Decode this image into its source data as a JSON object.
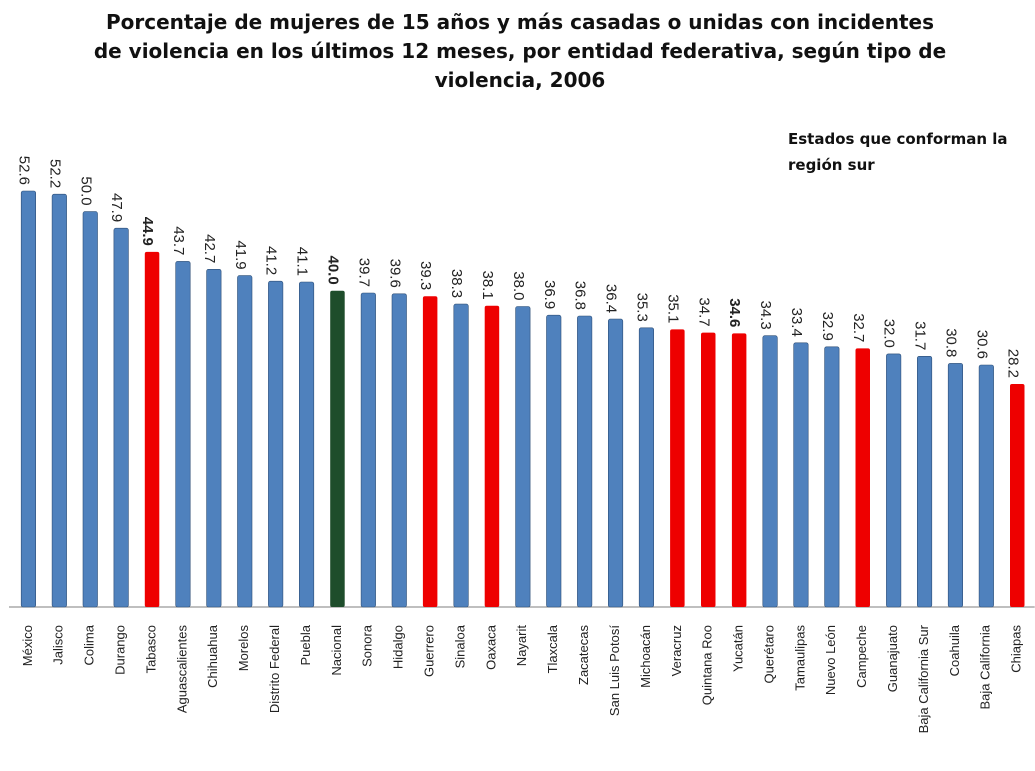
{
  "chart_data": {
    "type": "bar",
    "title": "Porcentaje de mujeres de 15 años y más casadas o unidas con incidentes de violencia en los últimos 12 meses, por entidad federativa, según tipo de violencia, 2006",
    "annotation": "Estados que conforman la región sur",
    "xlabel": "",
    "ylabel": "",
    "ylim": [
      0,
      52.6
    ],
    "grid": false,
    "legend": "none",
    "colors": {
      "default": "#4f81bd",
      "region_sur": "#ee0000",
      "nacional": "#1e4d2b",
      "bar_edge": "#2c4d75"
    },
    "categories": [
      "México",
      "Jalisco",
      "Colima",
      "Durango",
      "Tabasco",
      "Aguascalientes",
      "Chihuahua",
      "Morelos",
      "Distrito Federal",
      "Puebla",
      "Nacional",
      "Sonora",
      "Hidalgo",
      "Guerrero",
      "Sinaloa",
      "Oaxaca",
      "Nayarit",
      "Tlaxcala",
      "Zacatecas",
      "San Luis Potosí",
      "Michoacán",
      "Veracruz",
      "Quintana Roo",
      "Yucatán",
      "Querétaro",
      "Tamaulipas",
      "Nuevo León",
      "Campeche",
      "Guanajuato",
      "Baja California Sur",
      "Coahuila",
      "Baja California",
      "Chiapas"
    ],
    "values": [
      52.6,
      52.2,
      50.0,
      47.9,
      44.9,
      43.7,
      42.7,
      41.9,
      41.2,
      41.1,
      40.0,
      39.7,
      39.6,
      39.3,
      38.3,
      38.1,
      38.0,
      36.9,
      36.8,
      36.4,
      35.3,
      35.1,
      34.7,
      34.6,
      34.3,
      33.4,
      32.9,
      32.7,
      32.0,
      31.7,
      30.8,
      30.6,
      28.2
    ],
    "value_labels": [
      "52.6",
      "52.2",
      "50.0",
      "47.9",
      "44.9",
      "43.7",
      "42.7",
      "41.9",
      "41.2",
      "41.1",
      "40.0",
      "39.7",
      "39.6",
      "39.3",
      "38.3",
      "38.1",
      "38.0",
      "36.9",
      "36.8",
      "36.4",
      "35.3",
      "35.1",
      "34.7",
      "34.6",
      "34.3",
      "33.4",
      "32.9",
      "32.7",
      "32.0",
      "31.7",
      "30.8",
      "30.6",
      "28.2"
    ],
    "group": [
      "default",
      "default",
      "default",
      "default",
      "region_sur",
      "default",
      "default",
      "default",
      "default",
      "default",
      "nacional",
      "default",
      "default",
      "region_sur",
      "default",
      "region_sur",
      "default",
      "default",
      "default",
      "default",
      "default",
      "region_sur",
      "region_sur",
      "region_sur",
      "default",
      "default",
      "default",
      "region_sur",
      "default",
      "default",
      "default",
      "default",
      "region_sur"
    ],
    "bold_labels": [
      "Tabasco",
      "Nacional",
      "Yucatán"
    ]
  }
}
